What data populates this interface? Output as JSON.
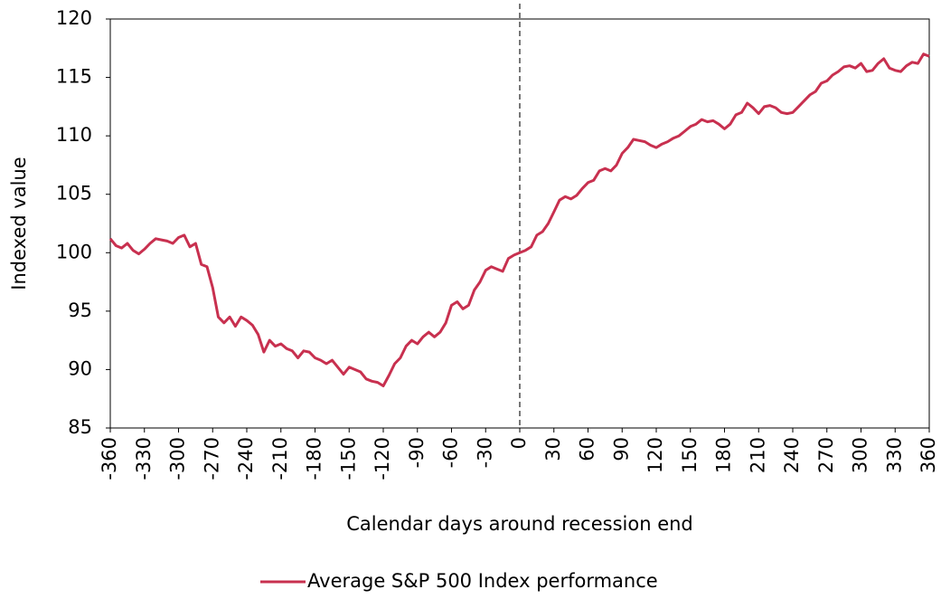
{
  "chart_data": {
    "type": "line",
    "x_label": "Calendar days around recession end",
    "y_label": "Indexed value",
    "x": [
      -360,
      -355,
      -350,
      -345,
      -340,
      -335,
      -330,
      -325,
      -320,
      -315,
      -310,
      -305,
      -300,
      -295,
      -290,
      -285,
      -280,
      -275,
      -270,
      -265,
      -260,
      -255,
      -250,
      -245,
      -240,
      -235,
      -230,
      -225,
      -220,
      -215,
      -210,
      -205,
      -200,
      -195,
      -190,
      -185,
      -180,
      -175,
      -170,
      -165,
      -160,
      -155,
      -150,
      -145,
      -140,
      -135,
      -130,
      -125,
      -120,
      -115,
      -110,
      -105,
      -100,
      -95,
      -90,
      -85,
      -80,
      -75,
      -70,
      -65,
      -60,
      -55,
      -50,
      -45,
      -40,
      -35,
      -30,
      -25,
      -20,
      -15,
      -10,
      -5,
      0,
      5,
      10,
      15,
      20,
      25,
      30,
      35,
      40,
      45,
      50,
      55,
      60,
      65,
      70,
      75,
      80,
      85,
      90,
      95,
      100,
      105,
      110,
      115,
      120,
      125,
      130,
      135,
      140,
      145,
      150,
      155,
      160,
      165,
      170,
      175,
      180,
      185,
      190,
      195,
      200,
      205,
      210,
      215,
      220,
      225,
      230,
      235,
      240,
      245,
      250,
      255,
      260,
      265,
      270,
      275,
      280,
      285,
      290,
      295,
      300,
      305,
      310,
      315,
      320,
      325,
      330,
      335,
      340,
      345,
      350,
      355,
      360
    ],
    "series": [
      {
        "name": "Average S&P 500 Index performance",
        "color": "#c8304f",
        "values": [
          101.2,
          100.6,
          100.4,
          100.8,
          100.2,
          99.9,
          100.3,
          100.8,
          101.2,
          101.1,
          101.0,
          100.8,
          101.3,
          101.5,
          100.5,
          100.8,
          99.0,
          98.8,
          97.0,
          94.5,
          94.0,
          94.5,
          93.7,
          94.5,
          94.2,
          93.8,
          93.0,
          91.5,
          92.5,
          92.0,
          92.2,
          91.8,
          91.6,
          91.0,
          91.6,
          91.5,
          91.0,
          90.8,
          90.5,
          90.8,
          90.2,
          89.6,
          90.2,
          90.0,
          89.8,
          89.2,
          89.0,
          88.9,
          88.6,
          89.5,
          90.5,
          91.0,
          92.0,
          92.5,
          92.2,
          92.8,
          93.2,
          92.8,
          93.2,
          94.0,
          95.5,
          95.8,
          95.2,
          95.5,
          96.8,
          97.5,
          98.5,
          98.8,
          98.6,
          98.4,
          99.5,
          99.8,
          100.0,
          100.2,
          100.5,
          101.5,
          101.8,
          102.5,
          103.5,
          104.5,
          104.8,
          104.6,
          104.9,
          105.5,
          106.0,
          106.2,
          107.0,
          107.2,
          107.0,
          107.5,
          108.5,
          109.0,
          109.7,
          109.6,
          109.5,
          109.2,
          109.0,
          109.3,
          109.5,
          109.8,
          110.0,
          110.4,
          110.8,
          111.0,
          111.4,
          111.2,
          111.3,
          111.0,
          110.6,
          111.0,
          111.8,
          112.0,
          112.8,
          112.4,
          111.9,
          112.5,
          112.6,
          112.4,
          112.0,
          111.9,
          112.0,
          112.5,
          113.0,
          113.5,
          113.8,
          114.5,
          114.7,
          115.2,
          115.5,
          115.9,
          116.0,
          115.8,
          116.2,
          115.5,
          115.6,
          116.2,
          116.6,
          115.8,
          115.6,
          115.5,
          116.0,
          116.3,
          116.2,
          117.0,
          116.8
        ]
      }
    ],
    "xlim": [
      -360,
      360
    ],
    "xticks": [
      -360,
      -330,
      -300,
      -270,
      -240,
      -210,
      -180,
      -150,
      -120,
      -90,
      -60,
      -30,
      0,
      30,
      60,
      90,
      120,
      150,
      180,
      210,
      240,
      270,
      300,
      330,
      360
    ],
    "ylim": [
      85,
      120
    ],
    "yticks": [
      85,
      90,
      95,
      100,
      105,
      110,
      115,
      120
    ],
    "vline": 0,
    "grid": false,
    "legend": "bottom"
  }
}
